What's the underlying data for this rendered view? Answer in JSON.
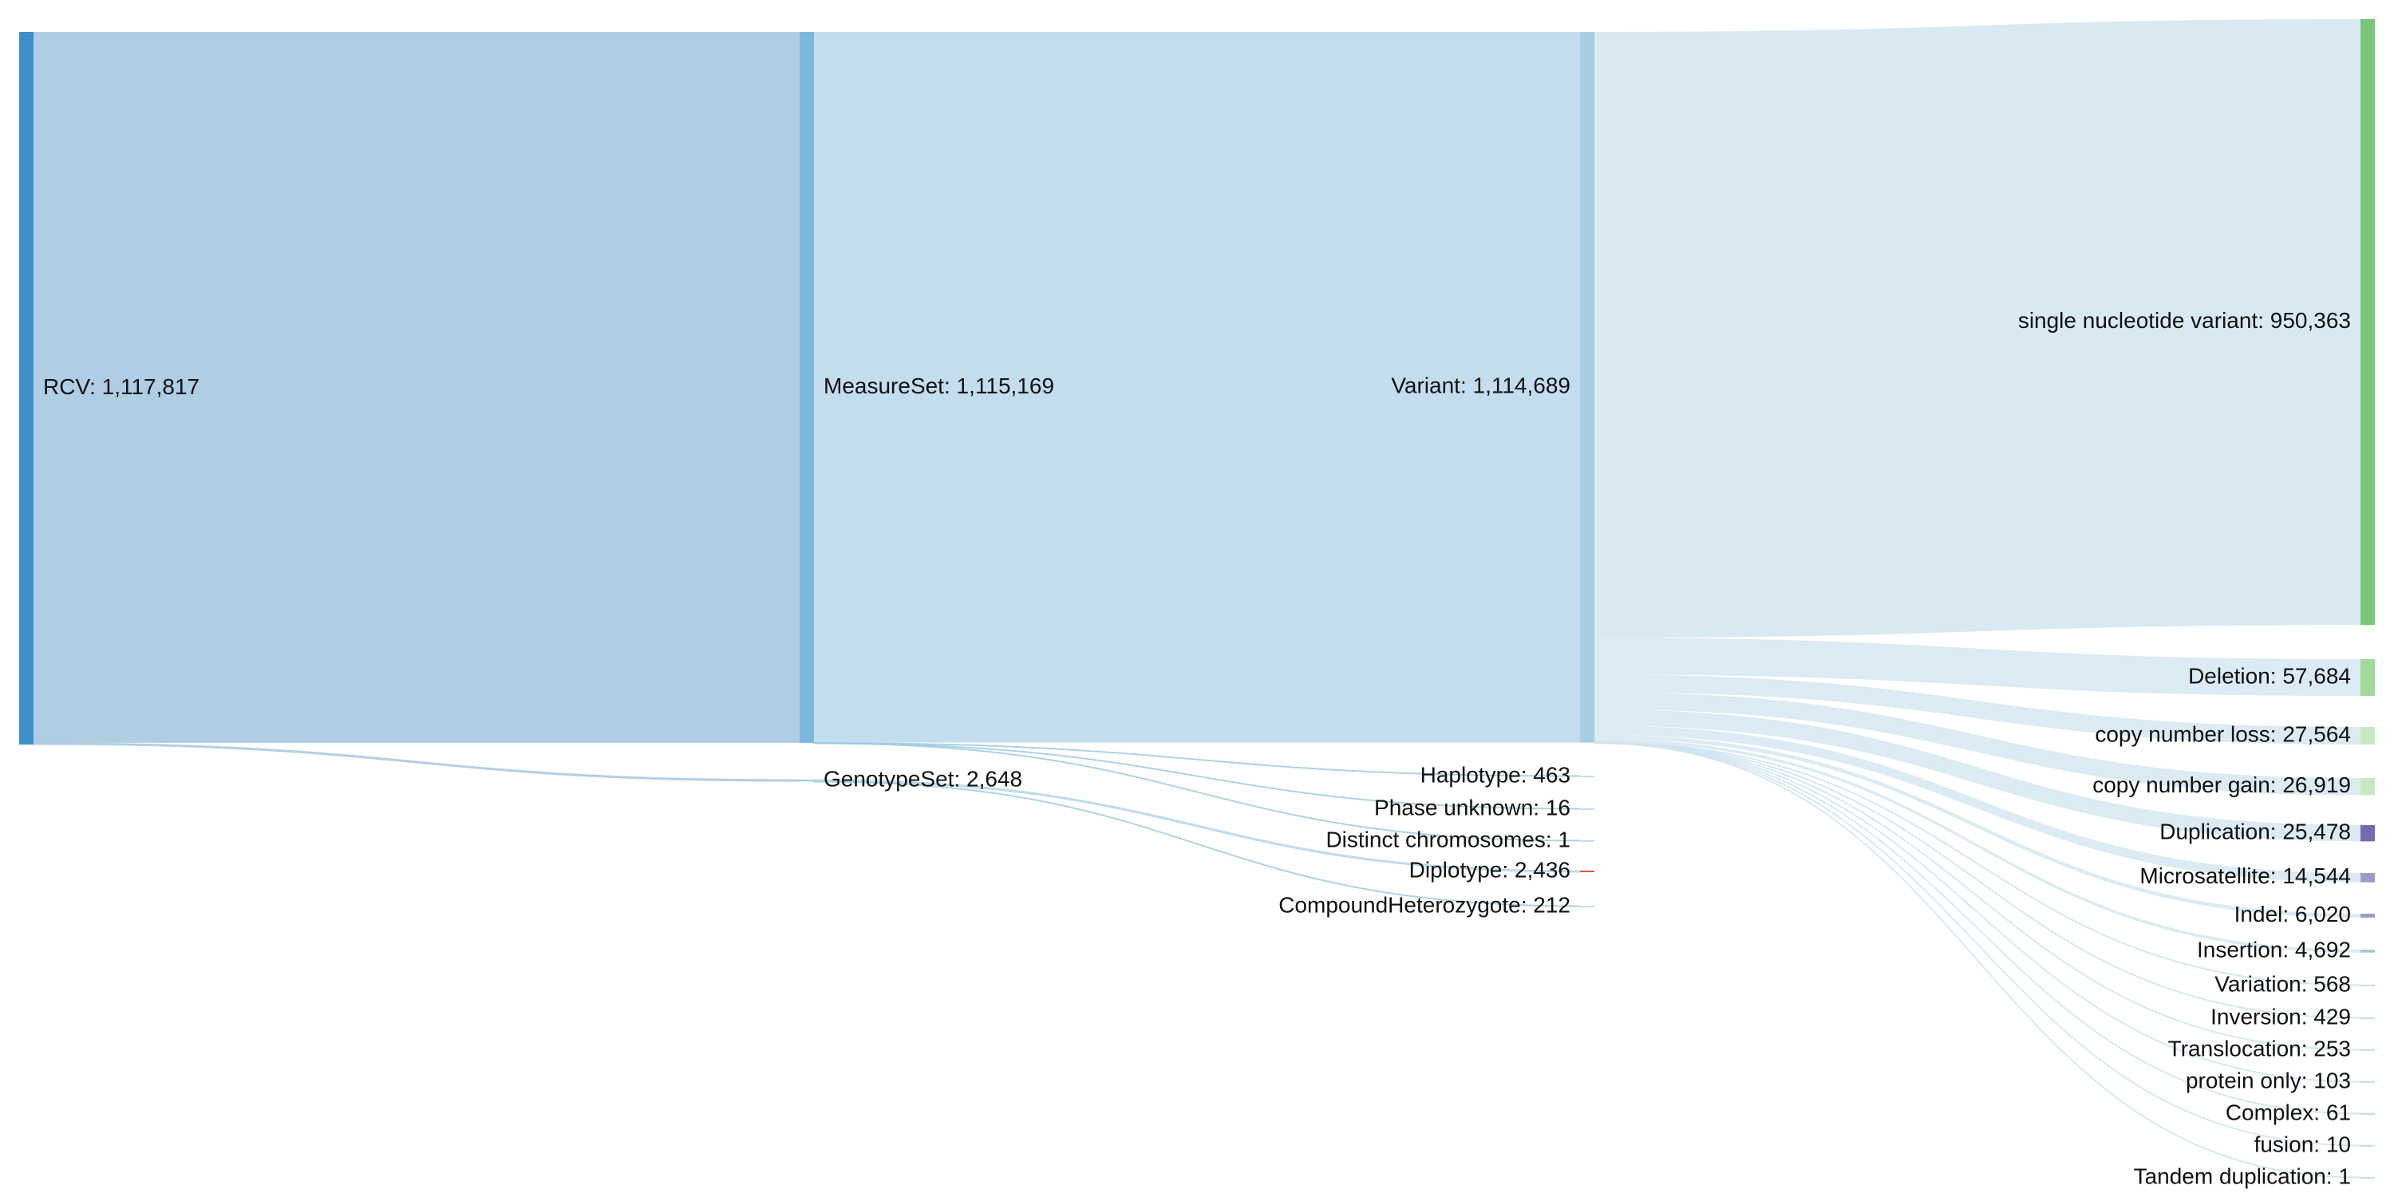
{
  "chart_data": {
    "type": "sankey",
    "nodes": [
      {
        "id": "rcv",
        "label": "RCV: 1,117,817",
        "value": 1117817,
        "color": "#3f8fc8"
      },
      {
        "id": "measureset",
        "label": "MeasureSet: 1,115,169",
        "value": 1115169,
        "color": "#7db8dc"
      },
      {
        "id": "genotypeset",
        "label": "GenotypeSet: 2,648",
        "value": 2648,
        "color": "#9ecae1"
      },
      {
        "id": "variant",
        "label": "Variant: 1,114,689",
        "value": 1114689,
        "color": "#a6cde2"
      },
      {
        "id": "haplotype",
        "label": "Haplotype: 463",
        "value": 463,
        "color": "#c6dbef"
      },
      {
        "id": "phase_unknown",
        "label": "Phase unknown: 16",
        "value": 16,
        "color": "#c6dbef"
      },
      {
        "id": "distinct_chrom",
        "label": "Distinct chromosomes: 1",
        "value": 1,
        "color": "#c6dbef"
      },
      {
        "id": "diplotype",
        "label": "Diplotype: 2,436",
        "value": 2436,
        "color": "#e8513a"
      },
      {
        "id": "comphet",
        "label": "CompoundHeterozygote: 212",
        "value": 212,
        "color": "#c6dbef"
      },
      {
        "id": "snv",
        "label": "single nucleotide variant: 950,363",
        "value": 950363,
        "color": "#78c679"
      },
      {
        "id": "deletion",
        "label": "Deletion: 57,684",
        "value": 57684,
        "color": "#a1d99b"
      },
      {
        "id": "cn_loss",
        "label": "copy number loss: 27,564",
        "value": 27564,
        "color": "#c7e9c0"
      },
      {
        "id": "cn_gain",
        "label": "copy number gain: 26,919",
        "value": 26919,
        "color": "#c7e9c0"
      },
      {
        "id": "duplication",
        "label": "Duplication: 25,478",
        "value": 25478,
        "color": "#756bb1"
      },
      {
        "id": "microsatellite",
        "label": "Microsatellite: 14,544",
        "value": 14544,
        "color": "#9e9ac8"
      },
      {
        "id": "indel",
        "label": "Indel: 6,020",
        "value": 6020,
        "color": "#9e9ac8"
      },
      {
        "id": "insertion",
        "label": "Insertion: 4,692",
        "value": 4692,
        "color": "#9ecae1"
      },
      {
        "id": "variation",
        "label": "Variation: 568",
        "value": 568,
        "color": "#c6dbef"
      },
      {
        "id": "inversion",
        "label": "Inversion: 429",
        "value": 429,
        "color": "#c6dbef"
      },
      {
        "id": "translocation",
        "label": "Translocation: 253",
        "value": 253,
        "color": "#c6dbef"
      },
      {
        "id": "protein_only",
        "label": "protein only: 103",
        "value": 103,
        "color": "#c6dbef"
      },
      {
        "id": "complex",
        "label": "Complex: 61",
        "value": 61,
        "color": "#c6dbef"
      },
      {
        "id": "fusion",
        "label": "fusion: 10",
        "value": 10,
        "color": "#c6dbef"
      },
      {
        "id": "tandem_dup",
        "label": "Tandem duplication: 1",
        "value": 1,
        "color": "#c6dbef"
      }
    ],
    "links": [
      {
        "source": "rcv",
        "target": "measureset",
        "value": 1115169
      },
      {
        "source": "rcv",
        "target": "genotypeset",
        "value": 2648
      },
      {
        "source": "measureset",
        "target": "variant",
        "value": 1114689
      },
      {
        "source": "measureset",
        "target": "haplotype",
        "value": 463
      },
      {
        "source": "measureset",
        "target": "phase_unknown",
        "value": 16
      },
      {
        "source": "measureset",
        "target": "distinct_chrom",
        "value": 1
      },
      {
        "source": "genotypeset",
        "target": "diplotype",
        "value": 2436
      },
      {
        "source": "genotypeset",
        "target": "comphet",
        "value": 212
      },
      {
        "source": "variant",
        "target": "snv",
        "value": 950363
      },
      {
        "source": "variant",
        "target": "deletion",
        "value": 57684
      },
      {
        "source": "variant",
        "target": "cn_loss",
        "value": 27564
      },
      {
        "source": "variant",
        "target": "cn_gain",
        "value": 26919
      },
      {
        "source": "variant",
        "target": "duplication",
        "value": 25478
      },
      {
        "source": "variant",
        "target": "microsatellite",
        "value": 14544
      },
      {
        "source": "variant",
        "target": "indel",
        "value": 6020
      },
      {
        "source": "variant",
        "target": "insertion",
        "value": 4692
      },
      {
        "source": "variant",
        "target": "variation",
        "value": 568
      },
      {
        "source": "variant",
        "target": "inversion",
        "value": 429
      },
      {
        "source": "variant",
        "target": "translocation",
        "value": 253
      },
      {
        "source": "variant",
        "target": "protein_only",
        "value": 103
      },
      {
        "source": "variant",
        "target": "complex",
        "value": 61
      },
      {
        "source": "variant",
        "target": "fusion",
        "value": 10
      },
      {
        "source": "variant",
        "target": "tandem_dup",
        "value": 1
      }
    ]
  }
}
